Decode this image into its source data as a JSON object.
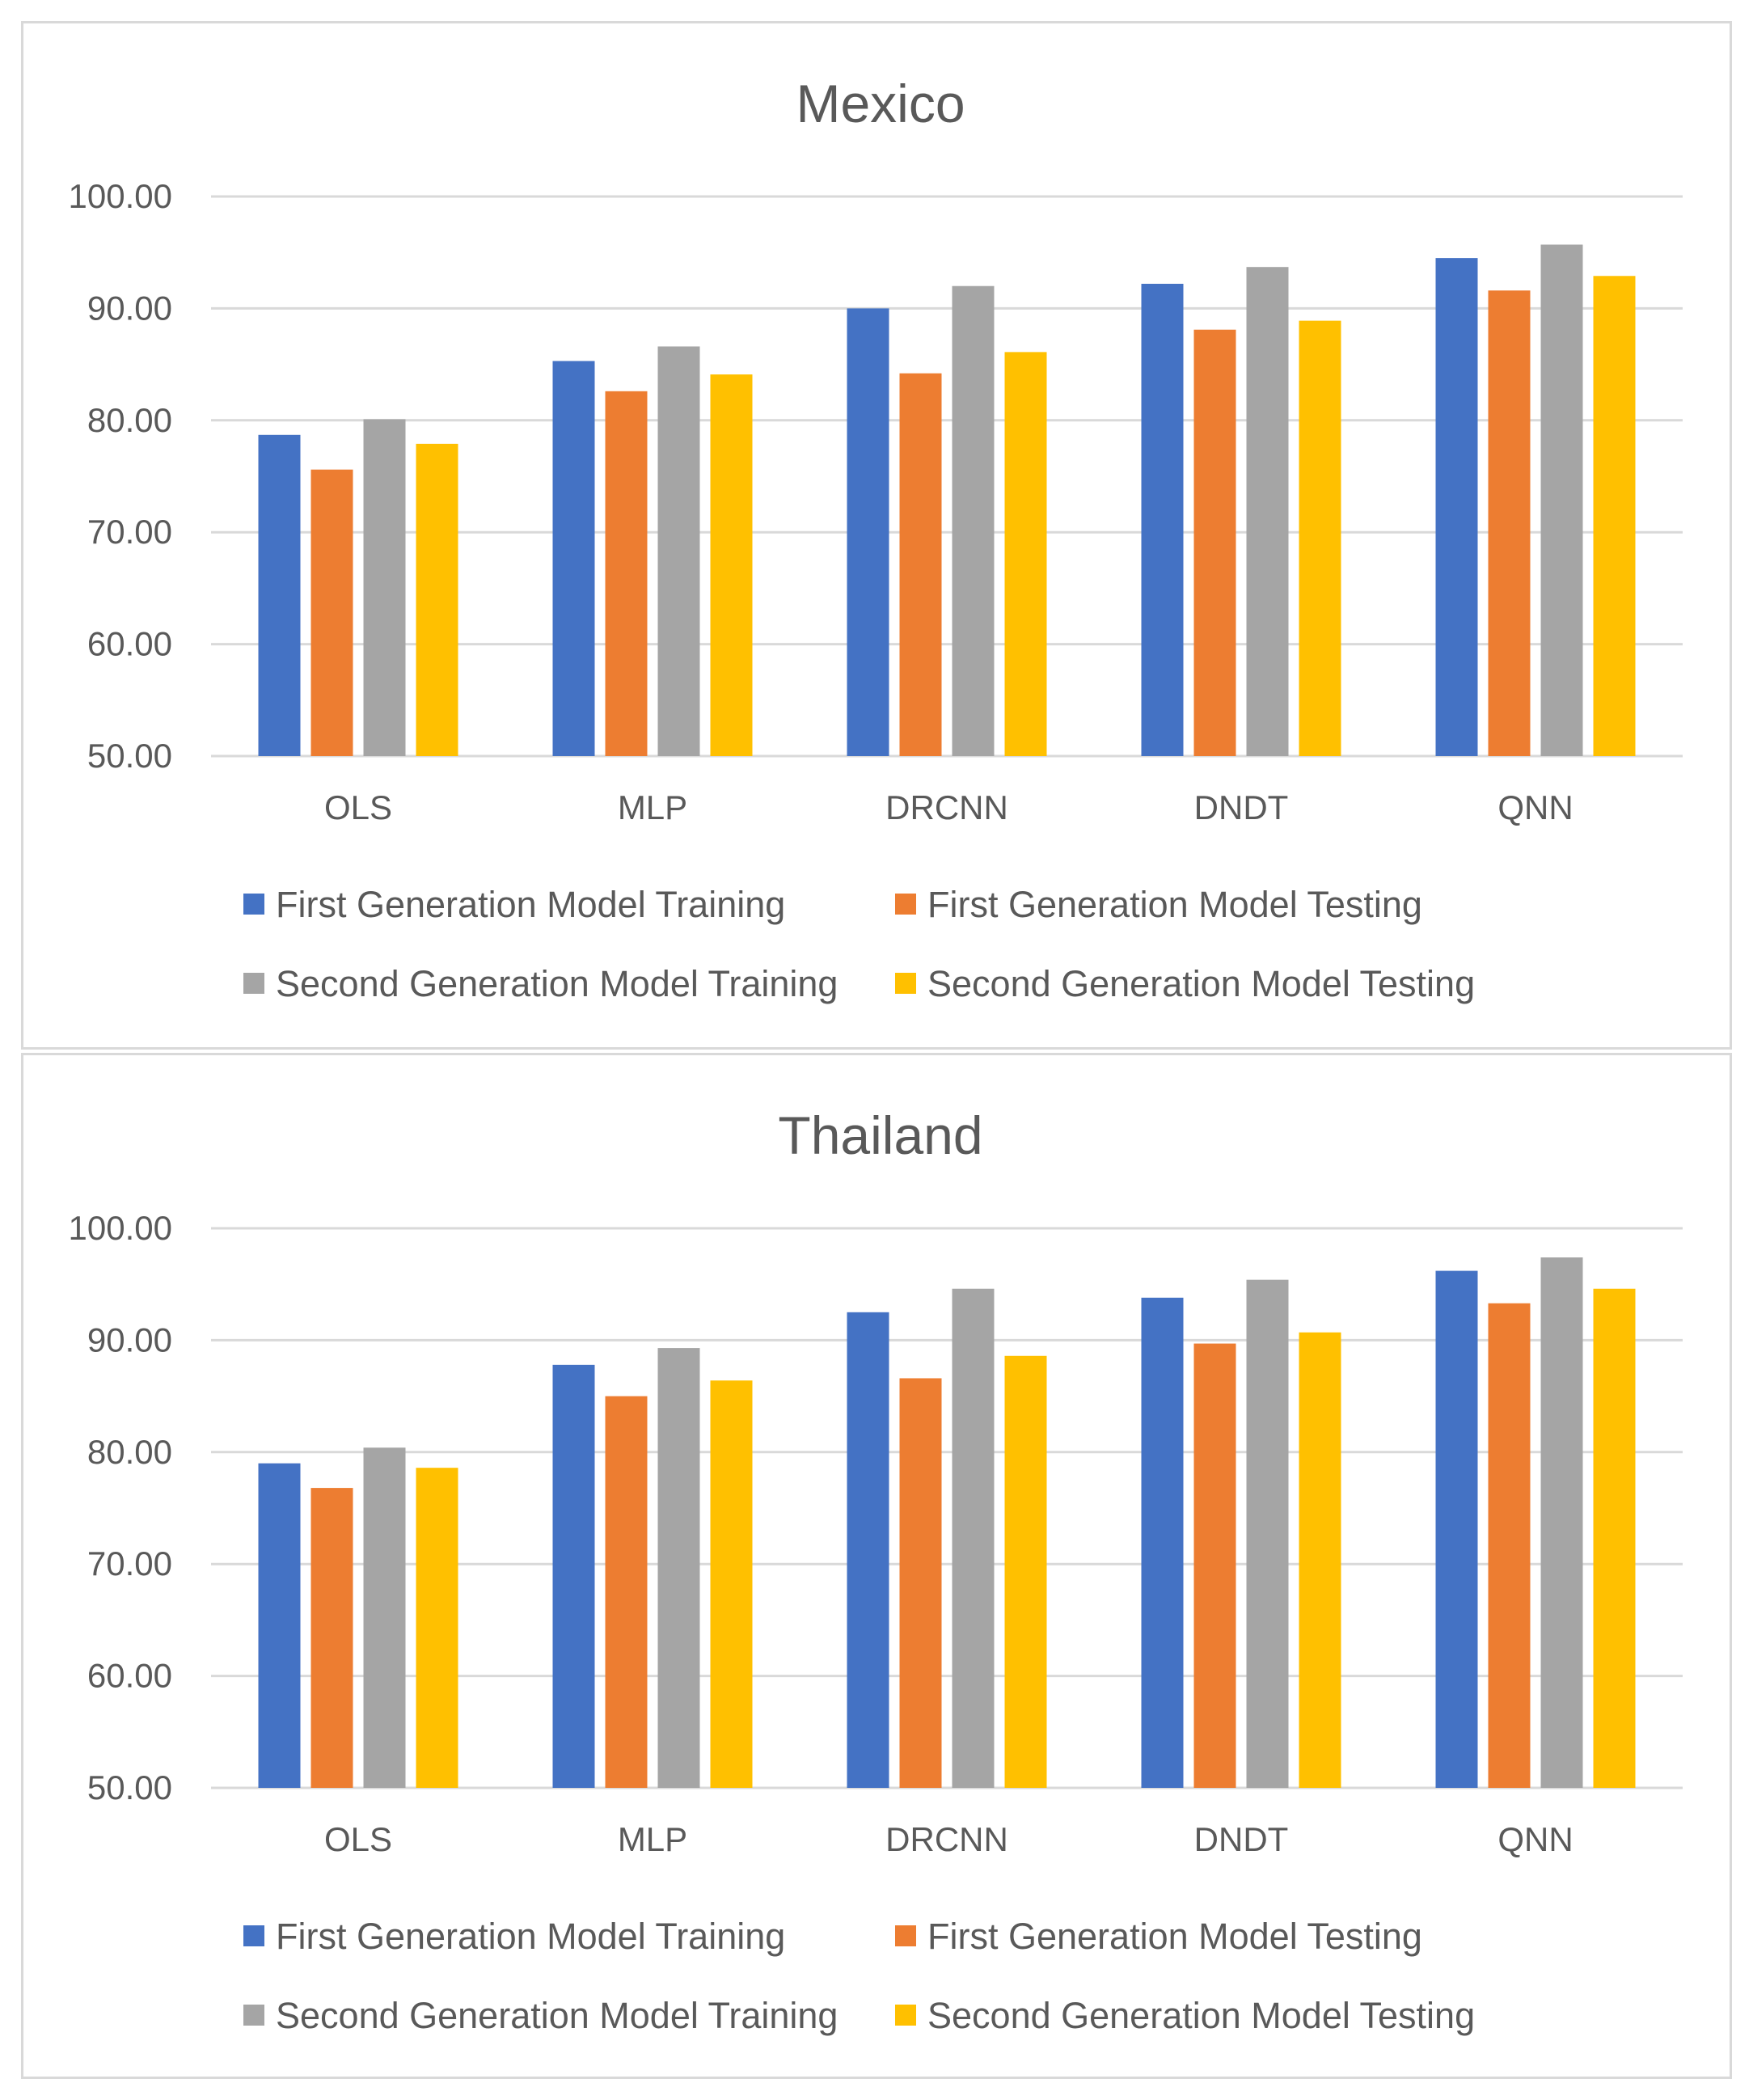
{
  "chart_data": [
    {
      "type": "bar",
      "title": "Mexico",
      "xlabel": "",
      "ylabel": "",
      "ylim": [
        50,
        100
      ],
      "yticks": [
        "50.00",
        "60.00",
        "70.00",
        "80.00",
        "90.00",
        "100.00"
      ],
      "ytick_values": [
        50,
        60,
        70,
        80,
        90,
        100
      ],
      "categories": [
        "OLS",
        "MLP",
        "DRCNN",
        "DNDT",
        "QNN"
      ],
      "series": [
        {
          "name": "First Generation Model Training",
          "color": "#4472c4",
          "values": [
            78.7,
            85.3,
            90.0,
            92.2,
            94.5
          ]
        },
        {
          "name": "First Generation Model Testing",
          "color": "#ed7d31",
          "values": [
            75.6,
            82.6,
            84.2,
            88.1,
            91.6
          ]
        },
        {
          "name": "Second Generation Model Training",
          "color": "#a5a5a5",
          "values": [
            80.1,
            86.6,
            92.0,
            93.7,
            95.7
          ]
        },
        {
          "name": "Second Generation Model Testing",
          "color": "#ffc000",
          "values": [
            77.9,
            84.1,
            86.1,
            88.9,
            92.9
          ]
        }
      ],
      "legend_position": "bottom"
    },
    {
      "type": "bar",
      "title": "Thailand",
      "xlabel": "",
      "ylabel": "",
      "ylim": [
        50,
        100
      ],
      "yticks": [
        "50.00",
        "60.00",
        "70.00",
        "80.00",
        "90.00",
        "100.00"
      ],
      "ytick_values": [
        50,
        60,
        70,
        80,
        90,
        100
      ],
      "categories": [
        "OLS",
        "MLP",
        "DRCNN",
        "DNDT",
        "QNN"
      ],
      "series": [
        {
          "name": "First Generation Model Training",
          "color": "#4472c4",
          "values": [
            79.0,
            87.8,
            92.5,
            93.8,
            96.2
          ]
        },
        {
          "name": "First Generation Model Testing",
          "color": "#ed7d31",
          "values": [
            76.8,
            85.0,
            86.6,
            89.7,
            93.3
          ]
        },
        {
          "name": "Second Generation Model Training",
          "color": "#a5a5a5",
          "values": [
            80.4,
            89.3,
            94.6,
            95.4,
            97.4
          ]
        },
        {
          "name": "Second Generation Model Testing",
          "color": "#ffc000",
          "values": [
            78.6,
            86.4,
            88.6,
            90.7,
            94.6
          ]
        }
      ],
      "legend_position": "bottom"
    }
  ]
}
